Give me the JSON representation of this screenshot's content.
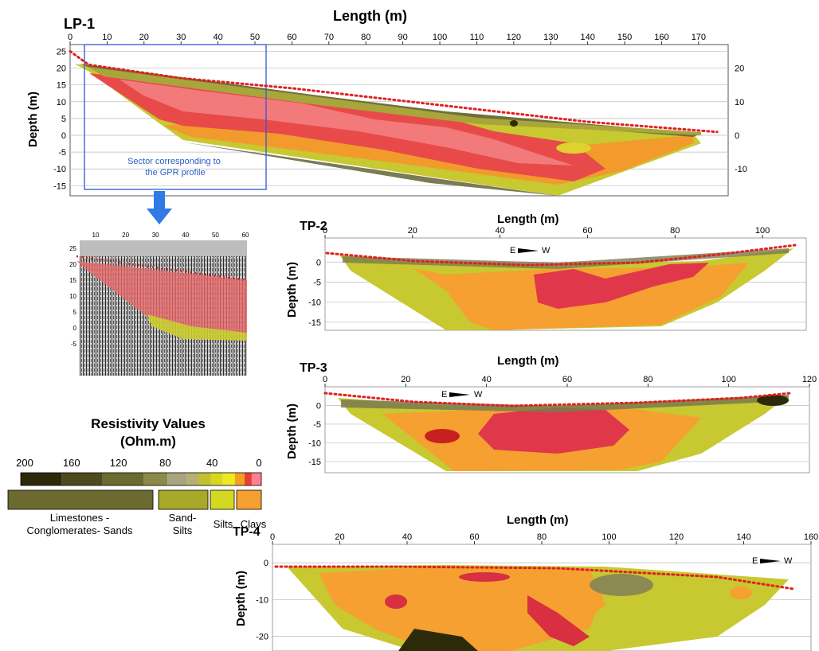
{
  "chart_data": [
    {
      "id": "LP-1",
      "type": "heatmap",
      "title": "LP-1",
      "xlabel": "Length (m)",
      "ylabel": "Depth (m)",
      "xticks": [
        0,
        10,
        20,
        30,
        40,
        50,
        60,
        70,
        80,
        90,
        100,
        110,
        120,
        130,
        140,
        150,
        160,
        170
      ],
      "yticks_left": [
        25,
        20,
        15,
        10,
        5,
        0,
        -5,
        -10,
        -15
      ],
      "yticks_right": [
        20,
        10,
        0,
        -10
      ],
      "xlim": [
        0,
        178
      ],
      "ylim": [
        -18,
        27
      ],
      "annotation": "Sector corresponding to\nthe GPR profile",
      "sector_x": [
        4,
        54
      ],
      "sector_y": [
        -14,
        26
      ],
      "surface": [
        [
          0,
          25
        ],
        [
          5,
          21
        ],
        [
          30,
          17
        ],
        [
          60,
          14
        ],
        [
          100,
          9
        ],
        [
          140,
          4
        ],
        [
          175,
          1
        ]
      ],
      "bottom": [
        [
          5,
          21
        ],
        [
          24,
          4
        ],
        [
          30,
          -1
        ],
        [
          140,
          -16
        ],
        [
          172,
          0
        ]
      ]
    },
    {
      "id": "GPR",
      "type": "heatmap",
      "xticks": [
        10,
        20,
        30,
        40,
        50,
        60
      ],
      "yticks": [
        25,
        20,
        15,
        10,
        5,
        0,
        -5
      ]
    },
    {
      "id": "TP-2",
      "type": "heatmap",
      "title": "TP-2",
      "xlabel": "Length (m)",
      "ylabel": "Depth (m)",
      "xticks": [
        0,
        20,
        40,
        60,
        80,
        100
      ],
      "yticks": [
        0,
        -5,
        -10,
        -15
      ],
      "xlim": [
        0,
        110
      ],
      "ylim": [
        -17,
        6
      ],
      "orientation": "E—W"
    },
    {
      "id": "TP-3",
      "type": "heatmap",
      "title": "TP-3",
      "xlabel": "Length (m)",
      "ylabel": "Depth (m)",
      "xticks": [
        0,
        20,
        40,
        60,
        80,
        100,
        120
      ],
      "yticks": [
        0,
        -5,
        -10,
        -15
      ],
      "xlim": [
        0,
        120
      ],
      "ylim": [
        -18,
        5
      ],
      "orientation": "E—W"
    },
    {
      "id": "TP-4",
      "type": "heatmap",
      "title": "TP-4",
      "xlabel": "Length (m)",
      "ylabel": "Depth (m)",
      "xticks": [
        0,
        20,
        40,
        60,
        80,
        100,
        120,
        140,
        160
      ],
      "yticks": [
        0,
        -10,
        -20
      ],
      "xlim": [
        0,
        160
      ],
      "ylim": [
        -24,
        5
      ],
      "orientation": "E—W"
    }
  ],
  "legend": {
    "title_line1": "Resistivity Values",
    "title_line2": "(Ohm.m)",
    "scale_ticks": [
      200,
      160,
      120,
      80,
      40,
      0
    ],
    "colors": [
      "#2d2a0a",
      "#4e4a1e",
      "#6b6a30",
      "#8b8a48",
      "#a8a380",
      "#b8b070",
      "#c4c030",
      "#d8d820",
      "#f0e820",
      "#f2a020",
      "#e84030",
      "#ff8090"
    ],
    "classes": [
      {
        "label1": "Limestones -",
        "label2": "Conglomerates- Sands",
        "color": "#6b6a30"
      },
      {
        "label1": "Sand-",
        "label2": "Silts",
        "color": "#a8a82a"
      },
      {
        "label1": "Silts",
        "label2": "",
        "color": "#d4d822"
      },
      {
        "label1": "Clays",
        "label2": "",
        "color": "#f5a030"
      }
    ]
  }
}
